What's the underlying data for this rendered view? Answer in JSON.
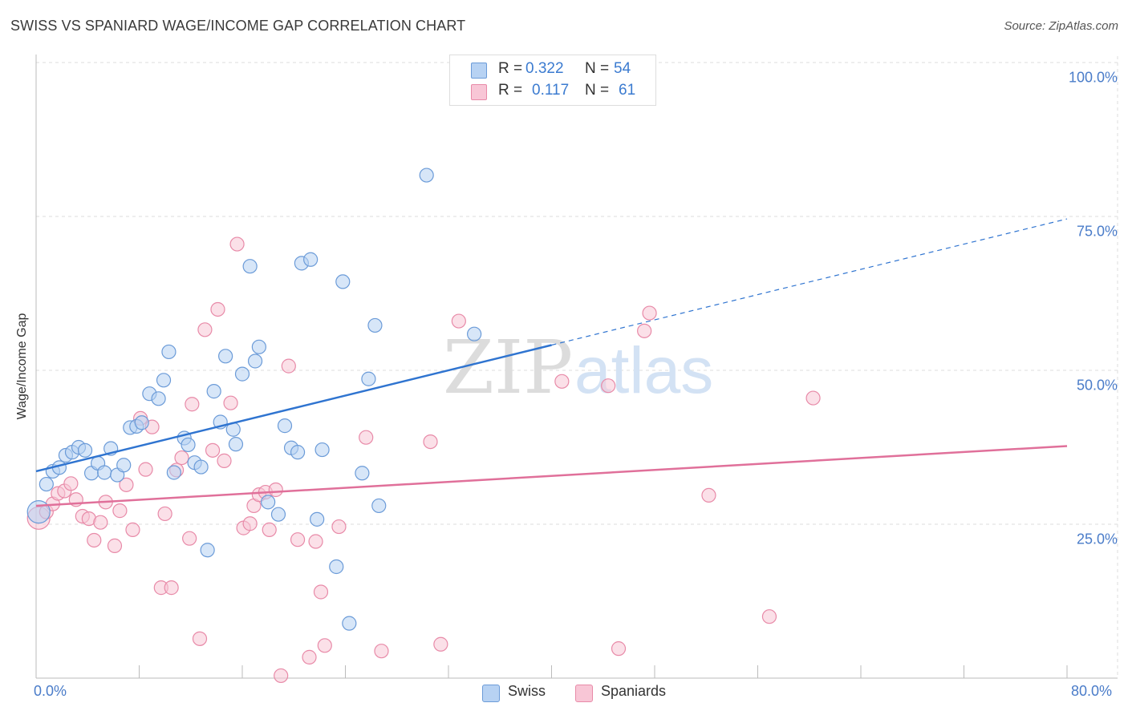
{
  "header": {
    "title": "SWISS VS SPANIARD WAGE/INCOME GAP CORRELATION CHART",
    "source": "Source: ZipAtlas.com"
  },
  "watermark": {
    "zip": "ZIP",
    "atlas": "atlas"
  },
  "stats_box": {
    "rows": [
      {
        "r_label": "R =",
        "r_value": "0.322",
        "n_label": "N =",
        "n_value": "54"
      },
      {
        "r_label": "R =",
        "r_value": "0.117",
        "n_label": "N =",
        "n_value": "61"
      }
    ]
  },
  "legend": {
    "swiss": "Swiss",
    "spaniards": "Spaniards"
  },
  "colors": {
    "swiss_fill": "#b7d2f3",
    "swiss_stroke": "#6b9bd8",
    "swiss_line": "#2f74d0",
    "spaniards_fill": "#f8c6d6",
    "spaniards_stroke": "#e88aa8",
    "spaniards_line": "#e0709a",
    "tick_text": "#4a7cc9",
    "grid": "#dddddd"
  },
  "chart_data": {
    "type": "scatter",
    "title": "SWISS VS SPANIARD WAGE/INCOME GAP CORRELATION CHART",
    "xlabel": "",
    "ylabel": "Wage/Income Gap",
    "xlim": [
      0,
      80
    ],
    "ylim": [
      0,
      100
    ],
    "x_tick_labels": [
      "0.0%",
      "80.0%"
    ],
    "y_ticks": [
      25,
      50,
      75,
      100
    ],
    "y_tick_labels": [
      "25.0%",
      "50.0%",
      "75.0%",
      "100.0%"
    ],
    "grid": true,
    "series": [
      {
        "name": "Swiss",
        "R": 0.322,
        "N": 54,
        "trend": {
          "x0": 0,
          "y0": 33.6,
          "x1": 40,
          "y1": 54.1,
          "dashed_to_x": 80,
          "dashed_to_y": 74.6
        },
        "points": [
          [
            0.2,
            27
          ],
          [
            0.8,
            31.5
          ],
          [
            1.3,
            33.6
          ],
          [
            1.8,
            34.2
          ],
          [
            2.3,
            36.2
          ],
          [
            2.8,
            36.7
          ],
          [
            3.3,
            37.5
          ],
          [
            3.8,
            37
          ],
          [
            4.3,
            33.3
          ],
          [
            4.8,
            34.9
          ],
          [
            5.3,
            33.4
          ],
          [
            5.8,
            37.3
          ],
          [
            6.3,
            33
          ],
          [
            6.8,
            34.6
          ],
          [
            7.3,
            40.7
          ],
          [
            7.8,
            40.9
          ],
          [
            8.2,
            41.5
          ],
          [
            8.8,
            46.2
          ],
          [
            9.5,
            45.4
          ],
          [
            9.9,
            48.4
          ],
          [
            10.3,
            53
          ],
          [
            10.7,
            33.4
          ],
          [
            11.5,
            39
          ],
          [
            11.8,
            37.9
          ],
          [
            12.3,
            35
          ],
          [
            12.8,
            34.3
          ],
          [
            13.3,
            20.8
          ],
          [
            13.8,
            46.6
          ],
          [
            14.3,
            41.6
          ],
          [
            14.7,
            52.3
          ],
          [
            15.3,
            40.4
          ],
          [
            15.5,
            38
          ],
          [
            16,
            49.4
          ],
          [
            16.6,
            66.9
          ],
          [
            17,
            51.5
          ],
          [
            17.3,
            53.8
          ],
          [
            18,
            28.6
          ],
          [
            18.8,
            26.6
          ],
          [
            19.3,
            41
          ],
          [
            19.8,
            37.4
          ],
          [
            20.3,
            36.7
          ],
          [
            20.6,
            67.4
          ],
          [
            21.3,
            68
          ],
          [
            21.8,
            25.8
          ],
          [
            22.2,
            37.1
          ],
          [
            23.3,
            18.1
          ],
          [
            23.8,
            64.4
          ],
          [
            24.3,
            8.9
          ],
          [
            25.3,
            33.3
          ],
          [
            25.8,
            48.6
          ],
          [
            26.3,
            57.3
          ],
          [
            26.6,
            28
          ],
          [
            30.3,
            81.7
          ],
          [
            34,
            55.9
          ]
        ]
      },
      {
        "name": "Spaniards",
        "R": 0.117,
        "N": 61,
        "trend": {
          "x0": 0,
          "y0": 28.0,
          "x1": 80,
          "y1": 37.7
        },
        "points": [
          [
            0.2,
            26
          ],
          [
            0.8,
            27
          ],
          [
            1.3,
            28.3
          ],
          [
            1.7,
            30
          ],
          [
            2.2,
            30.4
          ],
          [
            2.7,
            31.6
          ],
          [
            3.1,
            29
          ],
          [
            3.6,
            26.3
          ],
          [
            4.1,
            25.9
          ],
          [
            4.5,
            22.4
          ],
          [
            5,
            25.3
          ],
          [
            5.4,
            28.6
          ],
          [
            6.1,
            21.5
          ],
          [
            6.5,
            27.2
          ],
          [
            7,
            31.4
          ],
          [
            7.5,
            24.1
          ],
          [
            8.1,
            42.2
          ],
          [
            8.5,
            33.9
          ],
          [
            9,
            40.8
          ],
          [
            9.7,
            14.7
          ],
          [
            10,
            26.7
          ],
          [
            10.5,
            14.7
          ],
          [
            10.9,
            33.8
          ],
          [
            11.3,
            35.8
          ],
          [
            11.9,
            22.7
          ],
          [
            12.1,
            44.5
          ],
          [
            12.7,
            6.4
          ],
          [
            13.1,
            56.6
          ],
          [
            13.7,
            37
          ],
          [
            14.1,
            59.9
          ],
          [
            14.6,
            35.3
          ],
          [
            15.1,
            44.7
          ],
          [
            15.6,
            70.5
          ],
          [
            16.1,
            24.4
          ],
          [
            16.6,
            25.1
          ],
          [
            16.9,
            28
          ],
          [
            17.3,
            29.8
          ],
          [
            17.8,
            30.2
          ],
          [
            18.1,
            24.1
          ],
          [
            18.6,
            30.6
          ],
          [
            19,
            0.4
          ],
          [
            19.6,
            50.7
          ],
          [
            20.3,
            22.5
          ],
          [
            21.2,
            3.4
          ],
          [
            21.7,
            22.2
          ],
          [
            22.1,
            14
          ],
          [
            22.4,
            5.3
          ],
          [
            23.5,
            24.6
          ],
          [
            25.6,
            39.1
          ],
          [
            26.8,
            4.4
          ],
          [
            30.6,
            38.4
          ],
          [
            31.4,
            5.5
          ],
          [
            32.8,
            58
          ],
          [
            40.8,
            48.2
          ],
          [
            44.4,
            47.5
          ],
          [
            45.2,
            4.8
          ],
          [
            47.6,
            59.3
          ],
          [
            47.2,
            56.4
          ],
          [
            52.2,
            29.7
          ],
          [
            56.9,
            10
          ],
          [
            60.3,
            45.5
          ]
        ]
      }
    ]
  }
}
